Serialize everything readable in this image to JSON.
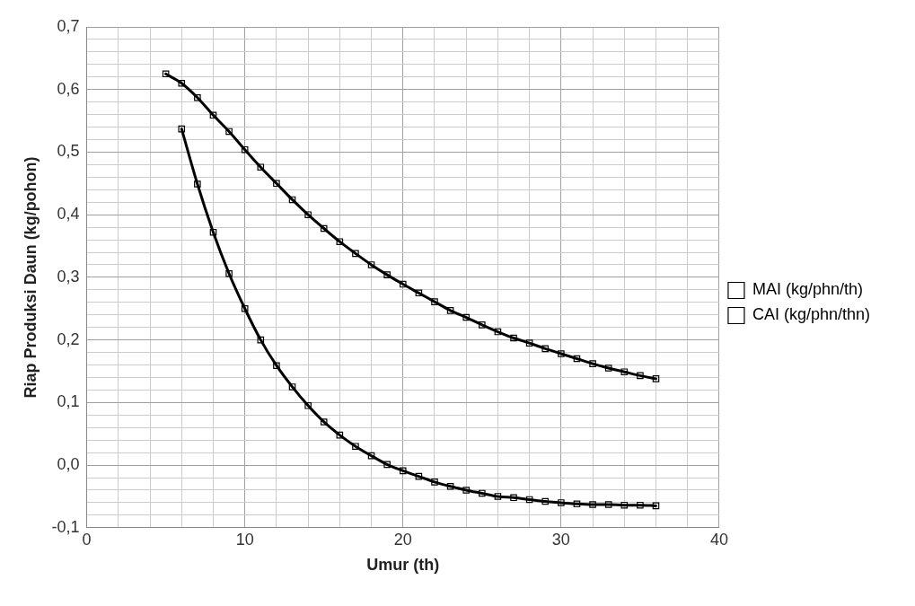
{
  "chart_data": {
    "type": "line",
    "xlabel": "Umur (th)",
    "ylabel": "Riap Produksi Daun (kg/pohon)",
    "xlim": [
      0,
      40
    ],
    "ylim": [
      -0.1,
      0.7
    ],
    "xticks": [
      0,
      {
        "value": 2,
        "label": null
      },
      {
        "value": 4,
        "label": null
      },
      {
        "value": 6,
        "label": null
      },
      {
        "value": 8,
        "label": null
      },
      10,
      {
        "value": 12,
        "label": null
      },
      {
        "value": 14,
        "label": null
      },
      {
        "value": 16,
        "label": null
      },
      {
        "value": 18,
        "label": null
      },
      20,
      {
        "value": 22,
        "label": null
      },
      {
        "value": 24,
        "label": null
      },
      {
        "value": 26,
        "label": null
      },
      {
        "value": 28,
        "label": null
      },
      30,
      {
        "value": 32,
        "label": null
      },
      {
        "value": 34,
        "label": null
      },
      {
        "value": 36,
        "label": null
      },
      {
        "value": 38,
        "label": null
      },
      40
    ],
    "yticks": [
      {
        "value": -0.1,
        "label": "-0,1"
      },
      {
        "value": -0.08,
        "label": null
      },
      {
        "value": -0.06,
        "label": null
      },
      {
        "value": -0.04,
        "label": null
      },
      {
        "value": -0.02,
        "label": null
      },
      {
        "value": 0,
        "label": "0,0"
      },
      {
        "value": 0.02,
        "label": null
      },
      {
        "value": 0.04,
        "label": null
      },
      {
        "value": 0.06,
        "label": null
      },
      {
        "value": 0.08,
        "label": null
      },
      {
        "value": 0.1,
        "label": "0,1"
      },
      {
        "value": 0.12,
        "label": null
      },
      {
        "value": 0.14,
        "label": null
      },
      {
        "value": 0.16,
        "label": null
      },
      {
        "value": 0.18,
        "label": null
      },
      {
        "value": 0.2,
        "label": "0,2"
      },
      {
        "value": 0.22,
        "label": null
      },
      {
        "value": 0.24,
        "label": null
      },
      {
        "value": 0.26,
        "label": null
      },
      {
        "value": 0.28,
        "label": null
      },
      {
        "value": 0.3,
        "label": "0,3"
      },
      {
        "value": 0.32,
        "label": null
      },
      {
        "value": 0.34,
        "label": null
      },
      {
        "value": 0.36,
        "label": null
      },
      {
        "value": 0.38,
        "label": null
      },
      {
        "value": 0.4,
        "label": "0,4"
      },
      {
        "value": 0.42,
        "label": null
      },
      {
        "value": 0.44,
        "label": null
      },
      {
        "value": 0.46,
        "label": null
      },
      {
        "value": 0.48,
        "label": null
      },
      {
        "value": 0.5,
        "label": "0,5"
      },
      {
        "value": 0.52,
        "label": null
      },
      {
        "value": 0.54,
        "label": null
      },
      {
        "value": 0.56,
        "label": null
      },
      {
        "value": 0.58,
        "label": null
      },
      {
        "value": 0.6,
        "label": "0,6"
      },
      {
        "value": 0.62,
        "label": null
      },
      {
        "value": 0.64,
        "label": null
      },
      {
        "value": 0.66,
        "label": null
      },
      {
        "value": 0.68,
        "label": null
      },
      {
        "value": 0.7,
        "label": "0,7"
      }
    ],
    "grid": true,
    "legend": "right",
    "marker": "square",
    "line_style": "solid",
    "series": [
      {
        "name": "MAI (kg/phn/th)",
        "color": "#000000",
        "x": [
          5,
          6,
          7,
          8,
          9,
          10,
          11,
          12,
          13,
          14,
          15,
          16,
          17,
          18,
          19,
          20,
          21,
          22,
          23,
          24,
          25,
          26,
          27,
          28,
          29,
          30,
          31,
          32,
          33,
          34,
          35,
          36
        ],
        "values": [
          0.625,
          0.61,
          0.587,
          0.559,
          0.533,
          0.504,
          0.476,
          0.45,
          0.424,
          0.4,
          0.378,
          0.357,
          0.338,
          0.32,
          0.304,
          0.289,
          0.275,
          0.261,
          0.247,
          0.236,
          0.224,
          0.213,
          0.203,
          0.195,
          0.186,
          0.178,
          0.17,
          0.162,
          0.155,
          0.149,
          0.143,
          0.138
        ]
      },
      {
        "name": "CAI (kg/phn/thn)",
        "color": "#000000",
        "x": [
          6,
          7,
          8,
          9,
          10,
          11,
          12,
          13,
          14,
          15,
          16,
          17,
          18,
          19,
          20,
          21,
          22,
          23,
          24,
          25,
          26,
          27,
          28,
          29,
          30,
          31,
          32,
          33,
          34,
          35,
          36
        ],
        "values": [
          0.537,
          0.449,
          0.372,
          0.306,
          0.25,
          0.2,
          0.159,
          0.125,
          0.095,
          0.069,
          0.048,
          0.03,
          0.015,
          0.001,
          -0.009,
          -0.018,
          -0.027,
          -0.034,
          -0.04,
          -0.045,
          -0.05,
          -0.052,
          -0.055,
          -0.058,
          -0.06,
          -0.062,
          -0.063,
          -0.063,
          -0.064,
          -0.064,
          -0.065
        ]
      }
    ]
  }
}
